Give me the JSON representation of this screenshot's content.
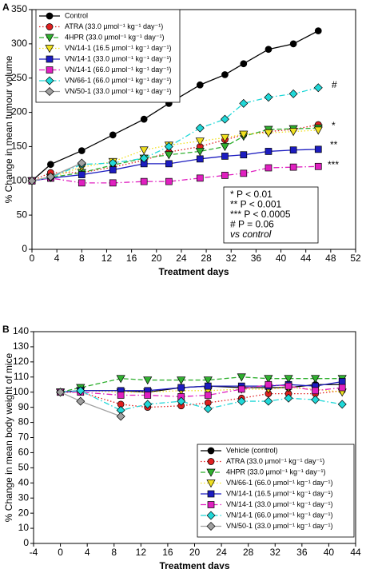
{
  "chart_data": [
    {
      "type": "line",
      "panel_label": "A",
      "xlabel": "Treatment days",
      "ylabel": "% Change in mean tumour volume",
      "x": [
        0,
        3,
        8,
        13,
        18,
        22,
        27,
        31,
        34,
        38,
        42,
        46
      ],
      "xlim": [
        0,
        52
      ],
      "xticks": [
        0,
        4,
        8,
        12,
        16,
        20,
        24,
        28,
        32,
        36,
        40,
        44,
        48,
        52
      ],
      "ylim": [
        0,
        350
      ],
      "yticks": [
        0,
        50,
        100,
        150,
        200,
        250,
        300,
        350
      ],
      "legend": "upper left",
      "series": [
        {
          "name": "Control",
          "color": "#000000",
          "marker": "circle",
          "linestyle": "solid",
          "values": [
            100,
            124,
            144,
            167,
            190,
            213,
            240,
            255,
            271,
            292,
            300,
            319
          ]
        },
        {
          "name": "ATRA (33.0 µmol⁻¹ kg⁻¹ day⁻¹)",
          "color": "#e02020",
          "marker": "circle",
          "linestyle": "dotted",
          "values": [
            100,
            112,
            112,
            120,
            130,
            142,
            150,
            160,
            167,
            172,
            175,
            182
          ]
        },
        {
          "name": "4HPR (33.0 µmol⁻¹ kg⁻¹ day⁻¹)",
          "color": "#30b030",
          "marker": "triangle-down",
          "linestyle": "dashed",
          "values": [
            100,
            105,
            112,
            123,
            133,
            138,
            143,
            150,
            165,
            175,
            176,
            177
          ]
        },
        {
          "name": "VN/14-1 (16.5 µmol⁻¹ kg⁻¹ day⁻¹)",
          "color": "#f0e020",
          "marker": "triangle-down",
          "linestyle": "dotted",
          "values": [
            100,
            105,
            120,
            128,
            145,
            152,
            158,
            163,
            168,
            170,
            172,
            174
          ]
        },
        {
          "name": "VN/14-1 (33.0 µmol⁻¹ kg⁻¹ day⁻¹)",
          "color": "#1c1cc0",
          "marker": "square",
          "linestyle": "solid",
          "values": [
            100,
            104,
            109,
            116,
            125,
            125,
            132,
            136,
            138,
            143,
            145,
            146
          ]
        },
        {
          "name": "VN/14-1 (66.0 µmol⁻¹ kg⁻¹ day⁻¹)",
          "color": "#e020c0",
          "marker": "square",
          "linestyle": "dashdot",
          "values": [
            100,
            104,
            97,
            97,
            99,
            99,
            104,
            108,
            111,
            119,
            120,
            121
          ]
        },
        {
          "name": "VN/66-1 (66.0 µmol⁻¹ kg⁻¹ day⁻¹)",
          "color": "#20d8d8",
          "marker": "diamond",
          "linestyle": "dashdot",
          "values": [
            100,
            105,
            124,
            126,
            133,
            150,
            177,
            190,
            213,
            222,
            227,
            236
          ]
        },
        {
          "name": "VN/50-1 (33.0 µmol⁻¹ kg⁻¹ day⁻¹)",
          "color": "#a0a0a0",
          "marker": "diamond",
          "linestyle": "solid",
          "values": [
            100,
            106,
            126,
            null,
            null,
            null,
            null,
            null,
            null,
            null,
            null,
            null
          ]
        }
      ],
      "significance_marks": [
        "#",
        "*",
        "**",
        "***"
      ],
      "significance_note": [
        "*    P < 0.01",
        "**   P < 0.001",
        "*** P < 0.0005",
        "#    P = 0.06",
        "vs control"
      ]
    },
    {
      "type": "line",
      "panel_label": "B",
      "xlabel": "Treatment days",
      "ylabel": "% Change in mean body weight of mice",
      "x": [
        0,
        3,
        9,
        13,
        18,
        22,
        27,
        31,
        34,
        38,
        42
      ],
      "xlim": [
        -4,
        44
      ],
      "xticks": [
        -4,
        0,
        4,
        8,
        12,
        16,
        20,
        24,
        28,
        32,
        36,
        40,
        44
      ],
      "ylim": [
        0,
        140
      ],
      "yticks": [
        0,
        10,
        20,
        30,
        40,
        50,
        60,
        70,
        80,
        90,
        100,
        110,
        120,
        130,
        140
      ],
      "legend": "lower right",
      "series": [
        {
          "name": "Vehicle (control)",
          "color": "#000000",
          "marker": "circle",
          "linestyle": "solid",
          "values": [
            100,
            101,
            101,
            100,
            103,
            104,
            103,
            103,
            103,
            105,
            105
          ]
        },
        {
          "name": "ATRA (33.0 µmol⁻¹ kg⁻¹ day⁻¹)",
          "color": "#e02020",
          "marker": "circle",
          "linestyle": "dotted",
          "values": [
            100,
            100,
            92,
            90,
            91,
            93,
            96,
            99,
            99,
            99,
            101
          ]
        },
        {
          "name": "4HPR (33.0 µmol⁻¹ kg⁻¹ day⁻¹)",
          "color": "#30b030",
          "marker": "triangle-down",
          "linestyle": "dashed",
          "values": [
            100,
            103,
            109,
            108,
            108,
            108,
            110,
            109,
            109,
            109,
            109
          ]
        },
        {
          "name": "VN/66-1 (66.0 µmol⁻¹ kg⁻¹ day⁻¹)",
          "color": "#f0e020",
          "marker": "triangle-down",
          "linestyle": "dotted",
          "values": [
            100,
            101,
            100,
            100,
            101,
            101,
            102,
            102,
            103,
            102,
            100
          ]
        },
        {
          "name": "VN/14-1 (16.5 µmol⁻¹ kg⁻¹ day⁻¹)",
          "color": "#1c1cc0",
          "marker": "square",
          "linestyle": "solid",
          "values": [
            100,
            101,
            101,
            101,
            103,
            104,
            104,
            104,
            105,
            104,
            107
          ]
        },
        {
          "name": "VN/14-1 (33.0 µmol⁻¹ kg⁻¹ day⁻¹)",
          "color": "#e020c0",
          "marker": "square",
          "linestyle": "dashdot",
          "values": [
            100,
            100,
            98,
            98,
            97,
            98,
            102,
            105,
            104,
            101,
            103
          ]
        },
        {
          "name": "VN/14-1 (66.0 µmol⁻¹ kg⁻¹ day⁻¹)",
          "color": "#20d8d8",
          "marker": "diamond",
          "linestyle": "dashdot",
          "values": [
            100,
            101,
            88,
            92,
            94,
            89,
            94,
            94,
            96,
            95,
            92
          ]
        },
        {
          "name": "VN/50-1 (33.0 µmol⁻¹ kg⁻¹ day⁻¹)",
          "color": "#a0a0a0",
          "marker": "diamond",
          "linestyle": "solid",
          "values": [
            100,
            94,
            84,
            null,
            null,
            null,
            null,
            null,
            null,
            null,
            null
          ]
        }
      ]
    }
  ]
}
